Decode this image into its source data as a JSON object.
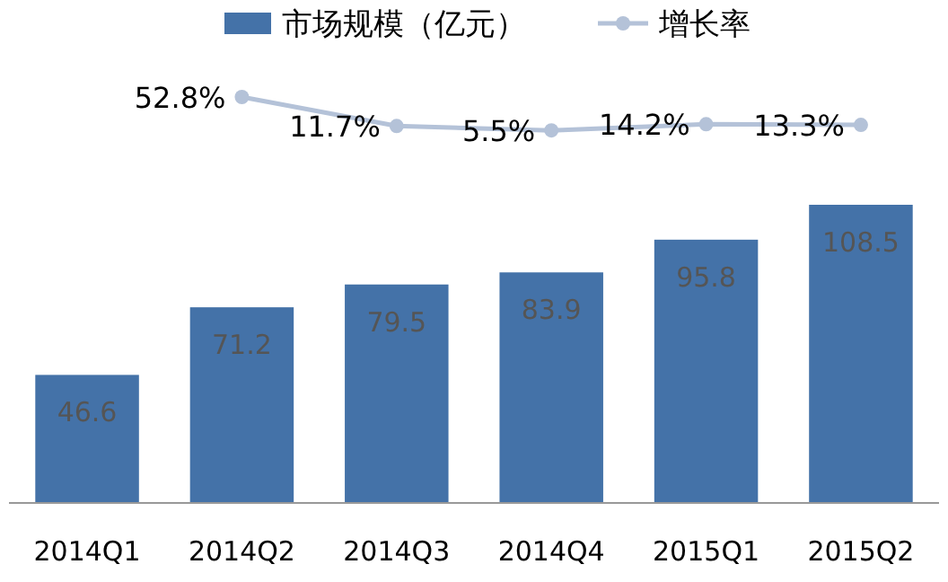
{
  "chart_data": [
    {
      "type": "line",
      "categories": [
        null,
        null,
        null,
        null,
        null,
        null
      ],
      "tick_labels": false,
      "legend": "top",
      "data_labels": true,
      "series": [
        {
          "name": "增长率",
          "color": "#b4c2d8",
          "marker": "circle",
          "values": [
            null,
            52.8,
            11.7,
            5.5,
            14.2,
            13.3
          ],
          "value_labels": [
            null,
            "52.8%",
            "11.7%",
            "5.5%",
            "14.2%",
            "13.3%"
          ]
        }
      ]
    },
    {
      "type": "bar",
      "categories": [
        "2014Q1",
        "2014Q2",
        "2014Q3",
        "2014Q4",
        "2015Q1",
        "2015Q2"
      ],
      "tick_labels": "x",
      "data_labels": true,
      "legend": "top",
      "series": [
        {
          "name": "市场规模（亿元）",
          "color": "#4472a8",
          "values": [
            46.6,
            71.2,
            79.5,
            83.9,
            95.8,
            108.5
          ]
        }
      ]
    }
  ]
}
